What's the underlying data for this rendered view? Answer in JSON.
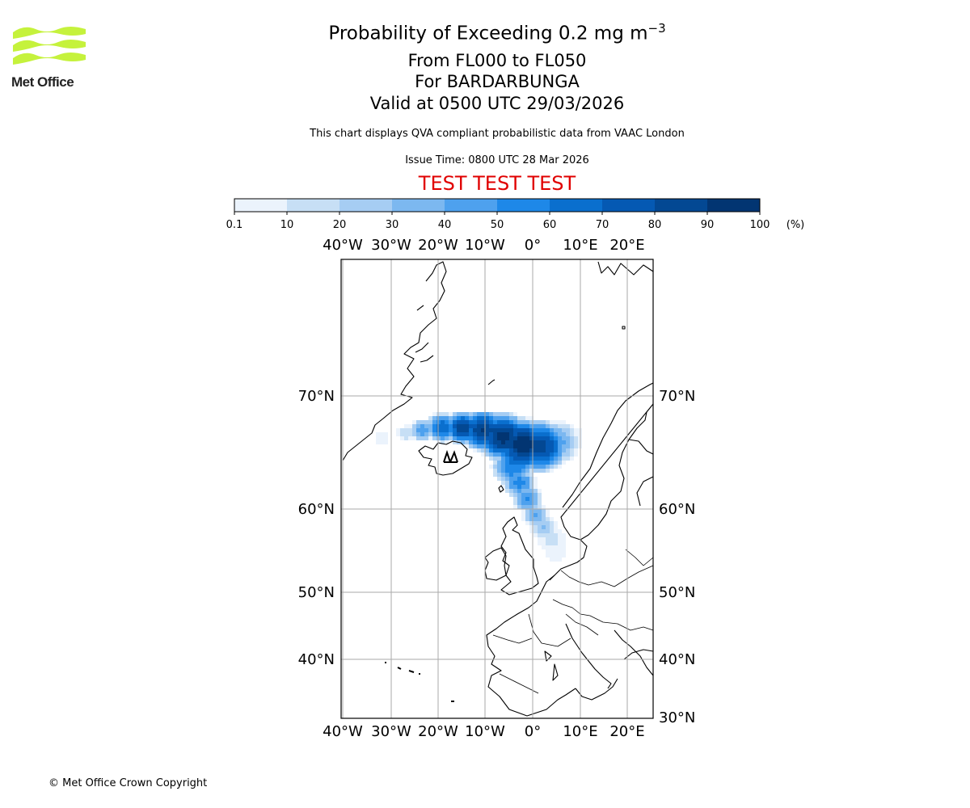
{
  "logo": {
    "text": "Met Office",
    "color": "#c5f23c"
  },
  "title": {
    "line1_prefix": "Probability of Exceeding 0.2 mg m",
    "line1_superscript": "−3",
    "line2": "From FL000 to FL050",
    "line3": "For BARDARBUNGA",
    "line4": "Valid at 0500 UTC 29/03/2026"
  },
  "subtitle": "This chart displays QVA compliant probabilistic data from VAAC London",
  "issue_time": "Issue Time: 0800 UTC 28 Mar 2026",
  "test_banner": "TEST TEST TEST",
  "colorbar": {
    "ticks": [
      "0.1",
      "10",
      "20",
      "30",
      "40",
      "50",
      "60",
      "70",
      "80",
      "90",
      "100"
    ],
    "unit": "(%)",
    "colors": [
      "#ebf3fc",
      "#c7dff5",
      "#a6cdf3",
      "#7cb8f0",
      "#4ea1ee",
      "#1e88e8",
      "#0a6fce",
      "#0559b3",
      "#034893",
      "#023572"
    ]
  },
  "map": {
    "lon_labels": [
      "40°W",
      "30°W",
      "20°W",
      "10°W",
      "0°",
      "10°E",
      "20°E"
    ],
    "lat_labels_left": [
      "70°N",
      "60°N",
      "50°N",
      "40°N"
    ],
    "lat_labels_right": [
      "70°N",
      "60°N",
      "50°N",
      "40°N",
      "30°N"
    ],
    "volcano": "BARDARBUNGA"
  },
  "copyright": "© Met Office Crown Copyright"
}
